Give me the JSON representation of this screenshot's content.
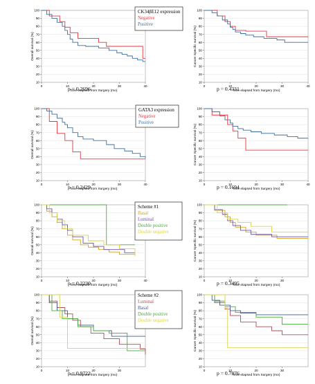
{
  "colors": {
    "red": "#e8323c",
    "blue": "#3f6e99",
    "orange": "#d4a21e",
    "green": "#4aa83d",
    "purple": "#6b54a8",
    "yellow": "#d9d24a",
    "maroon": "#b04a57",
    "navy": "#3e5c8f"
  },
  "chart_data": [
    {
      "type": "line",
      "step": true,
      "ylabel": "Overall survival (%)",
      "xlabel": "Time elapsed from Surgery (mo)",
      "xlim": [
        0,
        40
      ],
      "ylim": [
        10,
        100
      ],
      "xticks": [
        "0",
        "10",
        "20",
        "30",
        "40"
      ],
      "yticks": [
        "10",
        "20",
        "30",
        "40",
        "50",
        "60",
        "70",
        "80",
        "90",
        "100"
      ],
      "pvalue": "p = 0.2696",
      "legend": {
        "title": "CK34βE12 expression",
        "entries": [
          "Negative",
          "Positive"
        ]
      },
      "series": [
        {
          "name": "Negative",
          "color": "red",
          "x": [
            0,
            3,
            7,
            9,
            11,
            14,
            22,
            25,
            39,
            40
          ],
          "y": [
            100,
            93,
            86,
            79,
            72,
            65,
            60,
            55,
            40,
            40
          ]
        },
        {
          "name": "Positive",
          "color": "blue",
          "x": [
            0,
            2,
            4,
            6,
            8,
            9,
            10,
            11,
            12,
            14,
            17,
            22,
            26,
            29,
            31,
            33,
            35,
            37,
            39,
            40
          ],
          "y": [
            100,
            95,
            90,
            85,
            80,
            75,
            70,
            64,
            60,
            56,
            55,
            53,
            50,
            47,
            45,
            43,
            40,
            38,
            36,
            36
          ]
        }
      ]
    },
    {
      "type": "line",
      "step": true,
      "ylabel": "Cancer Specific survival (%)",
      "xlabel": "Time elapsed from Surgery (mo)",
      "xlim": [
        0,
        40
      ],
      "ylim": [
        10,
        100
      ],
      "xticks": [
        "0",
        "10",
        "20",
        "30",
        "40"
      ],
      "yticks": [
        "10",
        "20",
        "30",
        "40",
        "50",
        "60",
        "70",
        "80",
        "90",
        "100"
      ],
      "pvalue": "p = 0.4331",
      "series": [
        {
          "name": "Negative",
          "color": "red",
          "x": [
            0,
            5,
            8,
            10,
            12,
            16,
            24,
            40
          ],
          "y": [
            100,
            93,
            86,
            80,
            75,
            74,
            67,
            67
          ]
        },
        {
          "name": "Positive",
          "color": "blue",
          "x": [
            0,
            3,
            5,
            7,
            9,
            10,
            11,
            12,
            14,
            16,
            19,
            23,
            28,
            31,
            40
          ],
          "y": [
            100,
            97,
            93,
            88,
            83,
            79,
            76,
            73,
            71,
            69,
            67,
            65,
            63,
            60,
            60
          ]
        }
      ]
    },
    {
      "type": "line",
      "step": true,
      "ylabel": "Overall survival (%)",
      "xlabel": "Time elapsed from Surgery (mo)",
      "xlim": [
        0,
        40
      ],
      "ylim": [
        10,
        100
      ],
      "xticks": [
        "0",
        "10",
        "20",
        "30",
        "40"
      ],
      "yticks": [
        "10",
        "20",
        "30",
        "40",
        "50",
        "60",
        "70",
        "80",
        "90",
        "100"
      ],
      "pvalue": "p = 0.2429",
      "legend": {
        "title": "GATA3 expression",
        "entries": [
          "Negative",
          "Positive"
        ]
      },
      "series": [
        {
          "name": "Negative",
          "color": "red",
          "x": [
            0,
            3,
            6,
            9,
            12,
            15,
            40
          ],
          "y": [
            100,
            84,
            69,
            60,
            46,
            37,
            37
          ]
        },
        {
          "name": "Positive",
          "color": "blue",
          "x": [
            0,
            2,
            4,
            6,
            8,
            9,
            10,
            12,
            14,
            16,
            20,
            25,
            28,
            32,
            35,
            38,
            40
          ],
          "y": [
            100,
            97,
            93,
            88,
            83,
            80,
            76,
            70,
            65,
            62,
            60,
            55,
            50,
            47,
            44,
            40,
            38
          ]
        }
      ]
    },
    {
      "type": "line",
      "step": true,
      "ylabel": "Cancer Specific survival (%)",
      "xlabel": "Time elapsed from Surgery (mo)",
      "xlim": [
        0,
        40
      ],
      "ylim": [
        10,
        100
      ],
      "xticks": [
        "0",
        "10",
        "20",
        "30",
        "40"
      ],
      "yticks": [
        "10",
        "20",
        "30",
        "40",
        "50",
        "60",
        "70",
        "80",
        "90",
        "100"
      ],
      "pvalue": "p = 0.1694",
      "series": [
        {
          "name": "Negative",
          "color": "red",
          "x": [
            0,
            3,
            9,
            11,
            13,
            16,
            40
          ],
          "y": [
            100,
            92,
            80,
            72,
            63,
            48,
            48
          ]
        },
        {
          "name": "Positive",
          "color": "blue",
          "x": [
            0,
            3,
            6,
            8,
            10,
            11,
            13,
            15,
            18,
            22,
            27,
            32,
            36,
            40
          ],
          "y": [
            100,
            96,
            91,
            86,
            82,
            78,
            75,
            73,
            71,
            69,
            67,
            65,
            63,
            63
          ]
        }
      ]
    },
    {
      "type": "line",
      "step": true,
      "ylabel": "Overall survival (%)",
      "xlabel": "Time elapsed from Surgery (mo)",
      "xlim": [
        0,
        40
      ],
      "ylim": [
        10,
        100
      ],
      "xticks": [
        "0",
        "10",
        "20",
        "30",
        "40"
      ],
      "yticks": [
        "10",
        "20",
        "30",
        "40",
        "50",
        "60",
        "70",
        "80",
        "90",
        "100"
      ],
      "pvalue": "p = 0.2230",
      "legend": {
        "title": "Scheme #1",
        "entries": [
          "Basal",
          "Luminal",
          "Double positive",
          "Double negative"
        ]
      },
      "series": [
        {
          "name": "Basal",
          "color": "orange",
          "x": [
            0,
            2,
            4,
            6,
            8,
            10,
            12,
            15,
            18,
            22,
            26,
            30,
            36
          ],
          "y": [
            100,
            92,
            85,
            78,
            70,
            62,
            56,
            50,
            47,
            44,
            41,
            38,
            38
          ]
        },
        {
          "name": "Luminal",
          "color": "purple",
          "x": [
            0,
            2,
            4,
            6,
            8,
            10,
            12,
            16,
            20,
            24,
            32,
            36
          ],
          "y": [
            100,
            95,
            90,
            82,
            75,
            68,
            60,
            52,
            48,
            44,
            40,
            40
          ]
        },
        {
          "name": "Double positive",
          "color": "green",
          "x": [
            0,
            25,
            36
          ],
          "y": [
            100,
            50,
            50
          ]
        },
        {
          "name": "Double negative",
          "color": "yellow",
          "x": [
            0,
            3,
            6,
            9,
            12,
            18,
            24,
            30,
            36
          ],
          "y": [
            100,
            90,
            80,
            70,
            62,
            55,
            50,
            45,
            36
          ]
        }
      ]
    },
    {
      "type": "line",
      "step": true,
      "ylabel": "Cancer Specific survival (%)",
      "xlabel": "Time elapsed from Surgery (mo)",
      "xlim": [
        0,
        40
      ],
      "ylim": [
        10,
        100
      ],
      "xticks": [
        "0",
        "10",
        "20",
        "30"
      ],
      "yticks": [
        "10",
        "20",
        "30",
        "40",
        "50",
        "60",
        "70",
        "80",
        "90",
        "100"
      ],
      "pvalue": "p = 0.3495",
      "series": [
        {
          "name": "Basal",
          "color": "orange",
          "x": [
            0,
            4,
            8,
            10,
            12,
            16,
            20,
            28,
            40
          ],
          "y": [
            100,
            93,
            85,
            78,
            72,
            66,
            62,
            58,
            58
          ]
        },
        {
          "name": "Luminal",
          "color": "purple",
          "x": [
            0,
            4,
            7,
            9,
            11,
            14,
            18,
            26,
            40
          ],
          "y": [
            100,
            94,
            88,
            80,
            74,
            68,
            63,
            60,
            60
          ]
        },
        {
          "name": "Double positive",
          "color": "green",
          "x": [
            0,
            32
          ],
          "y": [
            100,
            100
          ]
        },
        {
          "name": "Double negative",
          "color": "yellow",
          "x": [
            0,
            5,
            9,
            13,
            18,
            26,
            40
          ],
          "y": [
            100,
            90,
            82,
            78,
            73,
            66,
            66
          ]
        }
      ]
    },
    {
      "type": "line",
      "step": true,
      "ylabel": "Overall survival (%)",
      "xlabel": "Time elapsed from Surgery (mo)",
      "xlim": [
        0,
        40
      ],
      "ylim": [
        10,
        100
      ],
      "xticks": [
        "0",
        "10",
        "20",
        "30"
      ],
      "yticks": [
        "10",
        "20",
        "30",
        "40",
        "50",
        "60",
        "70",
        "80",
        "90",
        "100"
      ],
      "pvalue": "p = 0.9722",
      "legend": {
        "title": "Scheme #2",
        "entries": [
          "Luminal",
          "Basal",
          "Double positive",
          "Double negative"
        ]
      },
      "series": [
        {
          "name": "Luminal",
          "color": "maroon",
          "x": [
            0,
            3,
            6,
            9,
            12,
            15,
            19,
            24,
            30,
            38,
            40
          ],
          "y": [
            100,
            92,
            84,
            76,
            68,
            60,
            52,
            45,
            38,
            32,
            25
          ]
        },
        {
          "name": "Basal",
          "color": "navy",
          "x": [
            0,
            3,
            6,
            10,
            14,
            20,
            27,
            40
          ],
          "y": [
            100,
            90,
            80,
            70,
            62,
            55,
            48,
            48
          ]
        },
        {
          "name": "Double positive",
          "color": "green",
          "x": [
            0,
            4,
            8,
            14,
            20,
            26,
            33,
            40
          ],
          "y": [
            100,
            80,
            70,
            60,
            55,
            52,
            30,
            30
          ]
        },
        {
          "name": "Double negative",
          "color": "yellow",
          "x": [
            0,
            7,
            10,
            40
          ],
          "y": [
            100,
            72,
            33,
            33
          ]
        }
      ]
    },
    {
      "type": "line",
      "step": true,
      "ylabel": "Cancer Specific survival (%)",
      "xlabel": "Time elapsed from Surgery (mo)",
      "xlim": [
        0,
        40
      ],
      "ylim": [
        10,
        100
      ],
      "xticks": [
        "0",
        "10",
        "20",
        "30"
      ],
      "yticks": [
        "10",
        "20",
        "30",
        "40",
        "50",
        "60",
        "70",
        "80",
        "90",
        "100"
      ],
      "pvalue": "p = 0.7876",
      "series": [
        {
          "name": "Luminal",
          "color": "maroon",
          "x": [
            0,
            4,
            8,
            10,
            14,
            20,
            26,
            30,
            40
          ],
          "y": [
            100,
            90,
            82,
            74,
            66,
            60,
            55,
            50,
            50
          ]
        },
        {
          "name": "Basal",
          "color": "navy",
          "x": [
            0,
            3,
            6,
            10,
            14,
            20,
            40
          ],
          "y": [
            100,
            93,
            87,
            80,
            77,
            75,
            75
          ]
        },
        {
          "name": "Double positive",
          "color": "green",
          "x": [
            0,
            4,
            8,
            12,
            20,
            30,
            40
          ],
          "y": [
            100,
            92,
            85,
            78,
            72,
            63,
            63
          ]
        },
        {
          "name": "Double negative",
          "color": "yellow",
          "x": [
            0,
            8,
            9,
            40
          ],
          "y": [
            100,
            83,
            34,
            34
          ]
        }
      ]
    }
  ]
}
